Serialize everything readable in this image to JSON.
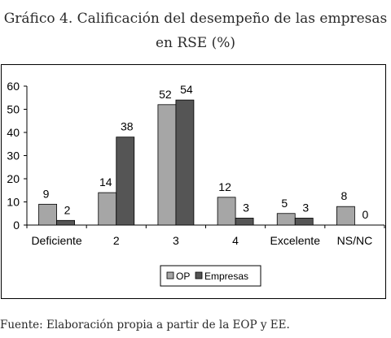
{
  "header": {
    "title_line1": "Gráfico 4. Calificación del desempeño de las empresas",
    "title_line2": "en RSE (%)"
  },
  "footer": {
    "source": "Fuente: Elaboración propia a partir de la EOP y EE."
  },
  "colors": {
    "op": "#a6a6a6",
    "empresas": "#555555",
    "axis": "#000000"
  },
  "chart_data": {
    "type": "bar",
    "title": "Gráfico 4. Calificación del desempeño de las empresas en RSE (%)",
    "xlabel": "",
    "ylabel": "",
    "ylim": [
      0,
      60
    ],
    "yticks": [
      0,
      10,
      20,
      30,
      40,
      50,
      60
    ],
    "grid": false,
    "legend_position": "bottom-center",
    "categories": [
      "Deficiente",
      "2",
      "3",
      "4",
      "Excelente",
      "NS/NC"
    ],
    "series": [
      {
        "name": "OP",
        "values": [
          9,
          14,
          52,
          12,
          5,
          8
        ]
      },
      {
        "name": "Empresas",
        "values": [
          2,
          38,
          54,
          3,
          3,
          0
        ]
      }
    ]
  }
}
